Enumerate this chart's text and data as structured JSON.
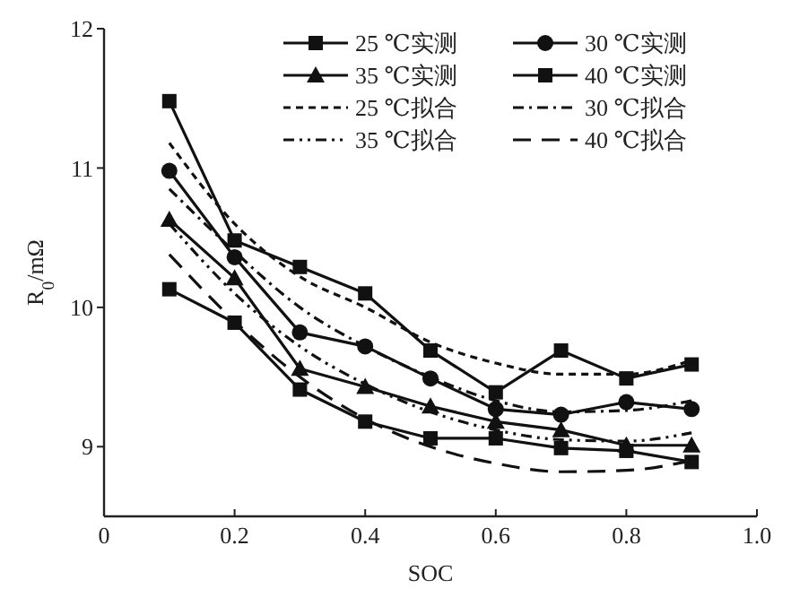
{
  "chart_data": {
    "type": "line",
    "xlabel": "SOC",
    "ylabel": "R$_{0}$/mΩ",
    "x": [
      0.1,
      0.2,
      0.3,
      0.4,
      0.5,
      0.6,
      0.7,
      0.8,
      0.9
    ],
    "xlim": [
      0,
      1
    ],
    "xticks": [
      0,
      0.2,
      0.4,
      0.6,
      0.8,
      {
        "value": 1,
        "label": "1.0"
      }
    ],
    "ylim": [
      8.5,
      12
    ],
    "yticks": [
      9,
      10,
      11,
      12
    ],
    "grid": false,
    "legend": "top right",
    "series": [
      {
        "name": "25 ℃实测",
        "color": "#111111",
        "marker": "square",
        "line_style": "solid",
        "values": [
          11.48,
          10.48,
          10.29,
          10.1,
          9.69,
          9.39,
          9.69,
          9.49,
          9.59
        ]
      },
      {
        "name": "30 ℃实测",
        "color": "#111111",
        "marker": "circle",
        "line_style": "solid",
        "values": [
          10.98,
          10.36,
          9.82,
          9.72,
          9.49,
          9.27,
          9.23,
          9.32,
          9.27
        ]
      },
      {
        "name": "35 ℃实测",
        "color": "#111111",
        "marker": "triangle",
        "line_style": "solid",
        "values": [
          10.63,
          10.21,
          9.56,
          9.43,
          9.29,
          9.18,
          9.12,
          9.01,
          9.01
        ]
      },
      {
        "name": "40 ℃实测",
        "color": "#111111",
        "marker": "square",
        "line_style": "solid",
        "values": [
          10.13,
          9.89,
          9.41,
          9.18,
          9.06,
          9.06,
          8.99,
          8.97,
          8.89
        ]
      },
      {
        "name": "25 ℃拟合",
        "color": "#111111",
        "marker": "none",
        "line_style": "dashed",
        "values": [
          11.18,
          10.6,
          10.22,
          10.0,
          9.75,
          9.6,
          9.52,
          9.52,
          9.62
        ]
      },
      {
        "name": "30 ℃拟合",
        "color": "#111111",
        "marker": "none",
        "line_style": "dashdot",
        "values": [
          10.85,
          10.4,
          10.0,
          9.72,
          9.5,
          9.33,
          9.25,
          9.26,
          9.33
        ]
      },
      {
        "name": "35 ℃拟合",
        "color": "#111111",
        "marker": "none",
        "line_style": "dashdotdot",
        "values": [
          10.6,
          10.1,
          9.72,
          9.45,
          9.25,
          9.12,
          9.05,
          9.04,
          9.1
        ]
      },
      {
        "name": "40 ℃拟合",
        "color": "#111111",
        "marker": "none",
        "line_style": "longdash",
        "values": [
          10.38,
          9.9,
          9.5,
          9.2,
          9.0,
          8.88,
          8.82,
          8.83,
          8.9
        ]
      }
    ]
  }
}
